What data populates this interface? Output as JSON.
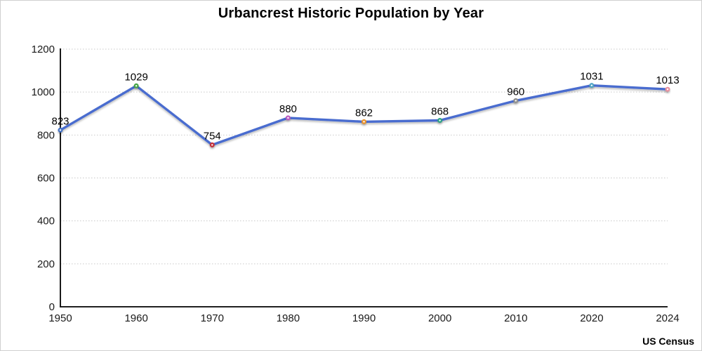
{
  "page": {
    "background": "#FFFFFF",
    "border_color": "#CFCFCF"
  },
  "chart_data": {
    "type": "line",
    "title": "Urbancrest Historic Population by Year",
    "source": "US Census",
    "categories": [
      "1950",
      "1960",
      "1970",
      "1980",
      "1990",
      "2000",
      "2010",
      "2020",
      "2024"
    ],
    "series": [
      {
        "name": "Population",
        "values": [
          823,
          1029,
          754,
          880,
          862,
          868,
          960,
          1031,
          1013
        ]
      }
    ],
    "xlabel": "",
    "ylabel": "",
    "ylim": [
      0,
      1200
    ],
    "yticks": [
      0,
      200,
      400,
      600,
      800,
      1000,
      1200
    ],
    "grid": true,
    "legend": "none",
    "data_labels": true,
    "colors": {
      "line": "#4A6CCF",
      "axis": "#000000",
      "gridline": "#C9C9C9",
      "tick_text": "#1A1A1A",
      "data_label_text": "#000000",
      "point_colors": [
        "#4472C4",
        "#47A647",
        "#C4303A",
        "#BC5CC2",
        "#E8932E",
        "#2EA287",
        "#8E8E8E",
        "#4FA3C4",
        "#E8919F"
      ],
      "point_center": "#FFFFFF"
    }
  }
}
